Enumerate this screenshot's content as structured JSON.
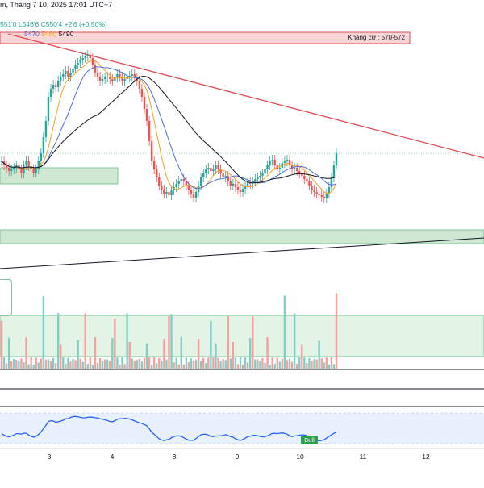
{
  "header": {
    "title": "m, Tháng 7 10, 2025 17:01 UTC+7",
    "ohlc": [
      {
        "label": "551'0",
        "color": "#26a69a"
      },
      {
        "label": "L546'6",
        "color": "#26a69a"
      },
      {
        "label": "C550'4",
        "color": "#26a69a"
      },
      {
        "label": "+2'6 (+0.50%)",
        "color": "#26a69a"
      }
    ],
    "ma_values": [
      {
        "label": "5470",
        "color": "#4a6fd8"
      },
      {
        "label": "5480",
        "color": "#f0a01e"
      },
      {
        "label": "5490",
        "color": "#131722"
      }
    ]
  },
  "resistance_zone": {
    "label": "Kháng cự : 570-572",
    "color": "#f4b8bd"
  },
  "rsi_signal": {
    "label": "Bull",
    "color": "#2e9e4f"
  },
  "date_axis": [
    "3",
    "4",
    "8",
    "9",
    "10",
    "11",
    "12"
  ],
  "colors": {
    "up": "#26a69a",
    "down": "#ef5350",
    "trendline": "#e04a4f",
    "support": "#cfe8d3",
    "rsi": "#2962ff"
  },
  "chart_data": {
    "type": "candlestick",
    "x": [
      "3",
      "4",
      "8",
      "9",
      "10",
      "11",
      "12"
    ],
    "ma_labels": [
      "5470",
      "5480",
      "5490"
    ],
    "annotations": [
      "Kháng cự : 570-572",
      "Bull"
    ]
  }
}
